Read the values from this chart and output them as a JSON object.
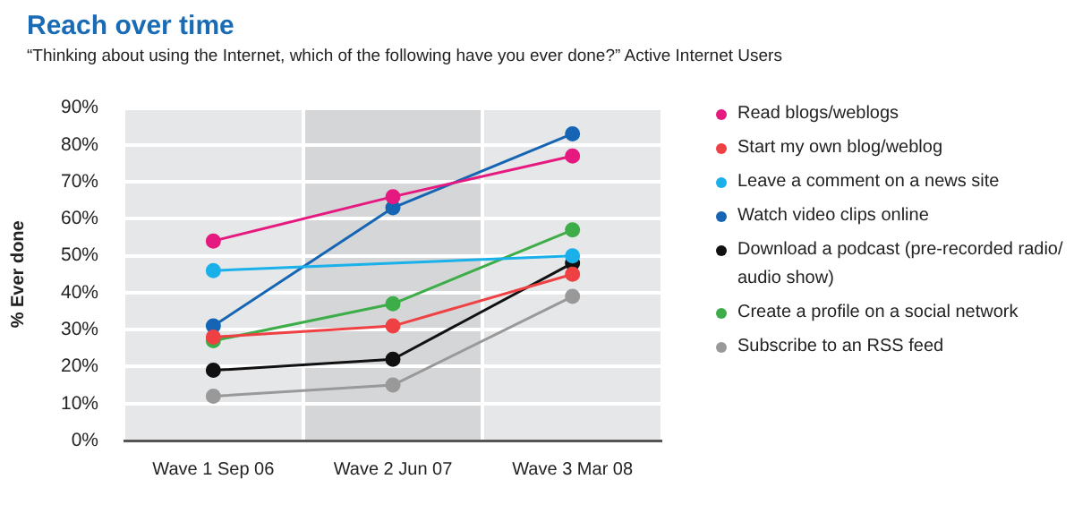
{
  "chart_data": {
    "type": "line",
    "title": "Reach over time",
    "subtitle": "“Thinking about using the Internet, which of the following have you ever done?” Active Internet Users",
    "ylabel": "% Ever done",
    "categories": [
      "Wave 1 Sep 06",
      "Wave 2 Jun 07",
      "Wave 3 Mar 08"
    ],
    "series": [
      {
        "name": "Read blogs/weblogs",
        "color": "#e5197f",
        "values": [
          54,
          66,
          77
        ]
      },
      {
        "name": "Start my own blog/weblog",
        "color": "#ef4044",
        "values": [
          28,
          31,
          45
        ]
      },
      {
        "name": "Leave a comment on a news site",
        "color": "#1ab0ea",
        "values": [
          46,
          null,
          50
        ]
      },
      {
        "name": "Watch video clips online",
        "color": "#1565b4",
        "values": [
          31,
          63,
          83
        ]
      },
      {
        "name": "Download a podcast (pre-recorded radio/ audio show)",
        "color": "#111111",
        "values": [
          19,
          22,
          48
        ]
      },
      {
        "name": "Create a profile on a social network",
        "color": "#3cad49",
        "values": [
          27,
          37,
          57
        ]
      },
      {
        "name": "Subscribe to an RSS feed",
        "color": "#999999",
        "values": [
          12,
          15,
          39
        ]
      }
    ],
    "ylim": [
      0,
      90
    ],
    "yticks": [
      {
        "value": 0,
        "label": "0%"
      },
      {
        "value": 10,
        "label": "10%"
      },
      {
        "value": 20,
        "label": "20%"
      },
      {
        "value": 30,
        "label": "30%"
      },
      {
        "value": 40,
        "label": "40%"
      },
      {
        "value": 50,
        "label": "50%"
      },
      {
        "value": 60,
        "label": "60%"
      },
      {
        "value": 70,
        "label": "70%"
      },
      {
        "value": 80,
        "label": "80%"
      },
      {
        "value": 90,
        "label": "90%"
      }
    ],
    "bands": [
      {
        "axis": "x",
        "from": "Wave 2 Jun 07",
        "to": "Wave 2 Jun 07",
        "color": "#d5d6d8"
      }
    ],
    "grid": true,
    "legend": "right",
    "marker": "circle",
    "line_style": "solid"
  }
}
